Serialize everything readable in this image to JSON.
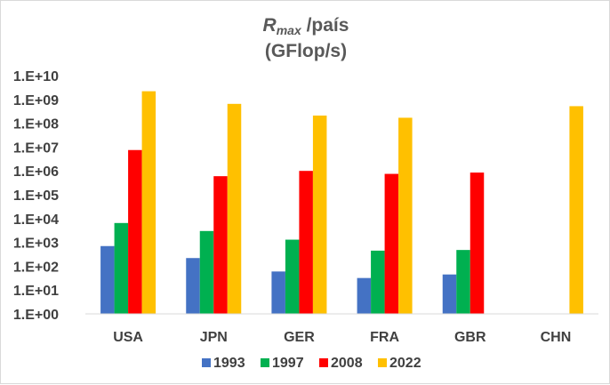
{
  "chart_data": {
    "type": "bar",
    "title": {
      "symbol": "R",
      "subscript": "max",
      "suffix": " /país",
      "line2": "(GFlop/s)"
    },
    "yscale": "log",
    "ylim": [
      1,
      10000000000
    ],
    "yticks": [
      {
        "value": 1,
        "label": "1.E+00"
      },
      {
        "value": 10,
        "label": "1.E+01"
      },
      {
        "value": 100,
        "label": "1.E+02"
      },
      {
        "value": 1000,
        "label": "1.E+03"
      },
      {
        "value": 10000,
        "label": "1.E+04"
      },
      {
        "value": 100000,
        "label": "1.E+05"
      },
      {
        "value": 1000000,
        "label": "1.E+06"
      },
      {
        "value": 10000000,
        "label": "1.E+07"
      },
      {
        "value": 100000000,
        "label": "1.E+08"
      },
      {
        "value": 1000000000,
        "label": "1.E+09"
      },
      {
        "value": 10000000000,
        "label": "1.E+10"
      }
    ],
    "categories": [
      "USA",
      "JPN",
      "GER",
      "FRA",
      "GBR",
      "CHN"
    ],
    "series": [
      {
        "name": "1993",
        "color": "#4472c4",
        "values": [
          700,
          220,
          60,
          32,
          45,
          null
        ]
      },
      {
        "name": "1997",
        "color": "#00b050",
        "values": [
          6500,
          3000,
          1300,
          450,
          480,
          null
        ]
      },
      {
        "name": "2008",
        "color": "#ff0000",
        "values": [
          7500000,
          600000,
          1000000,
          750000,
          850000,
          null
        ]
      },
      {
        "name": "2022",
        "color": "#ffc000",
        "values": [
          2200000000,
          650000000,
          210000000,
          170000000,
          null,
          520000000
        ]
      }
    ],
    "grid": false,
    "legend": "bottom"
  }
}
